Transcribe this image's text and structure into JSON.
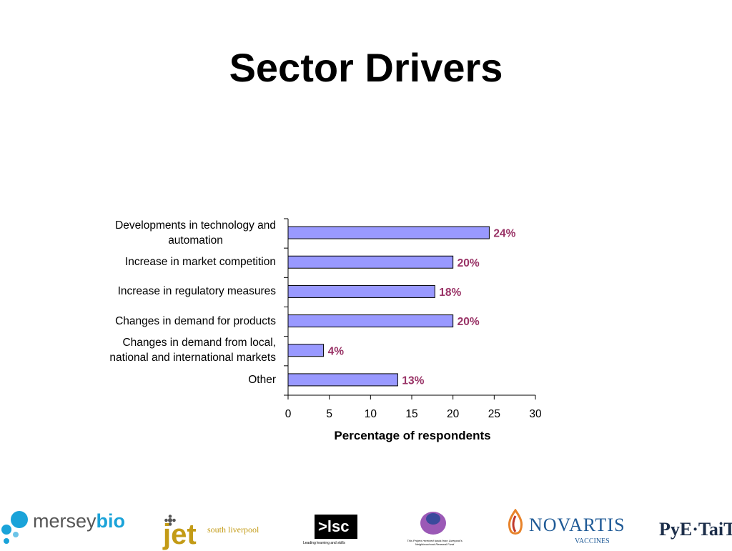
{
  "slide": {
    "title": "Sector Drivers"
  },
  "chart_data": {
    "type": "bar",
    "orientation": "horizontal",
    "categories": [
      "Developments in technology and automation",
      "Increase in market competition",
      "Increase in regulatory measures",
      "Changes in demand for products",
      "Changes in demand from local, national and international markets",
      "Other"
    ],
    "category_lines": [
      [
        "Developments in technology and",
        "automation"
      ],
      [
        "Increase in market competition"
      ],
      [
        "Increase in regulatory measures"
      ],
      [
        "Changes in demand for products"
      ],
      [
        "Changes in demand from local,",
        "national and international markets"
      ],
      [
        "Other"
      ]
    ],
    "values": [
      24.4,
      20,
      17.8,
      20,
      4.3,
      13.3
    ],
    "data_labels": [
      "24%",
      "20%",
      "18%",
      "20%",
      "4%",
      "13%"
    ],
    "xlabel": "Percentage of respondents",
    "ylabel": "",
    "xlim": [
      0,
      30
    ],
    "xticks": [
      "0",
      "5",
      "10",
      "15",
      "20",
      "25",
      "30"
    ],
    "grid": false,
    "bar_color": "#9999ff",
    "label_color": "#993366"
  },
  "footer": {
    "logos": [
      {
        "name": "merseybio",
        "text_a": "mersey",
        "text_b": "bio"
      },
      {
        "name": "jet",
        "text_a": "jet",
        "text_b": "south liverpool"
      },
      {
        "name": "lsc",
        "text_a": ">lsc",
        "text_b": "Leading learning and skills"
      },
      {
        "name": "objective-one",
        "text_a": "This Project received funds from Liverpool's Neighbourhood Renewal Fund"
      },
      {
        "name": "novartis",
        "text_a": "NOVARTIS",
        "text_b": "VACCINES"
      },
      {
        "name": "pye-tait",
        "text_a": "PyE·TaiT"
      }
    ]
  }
}
